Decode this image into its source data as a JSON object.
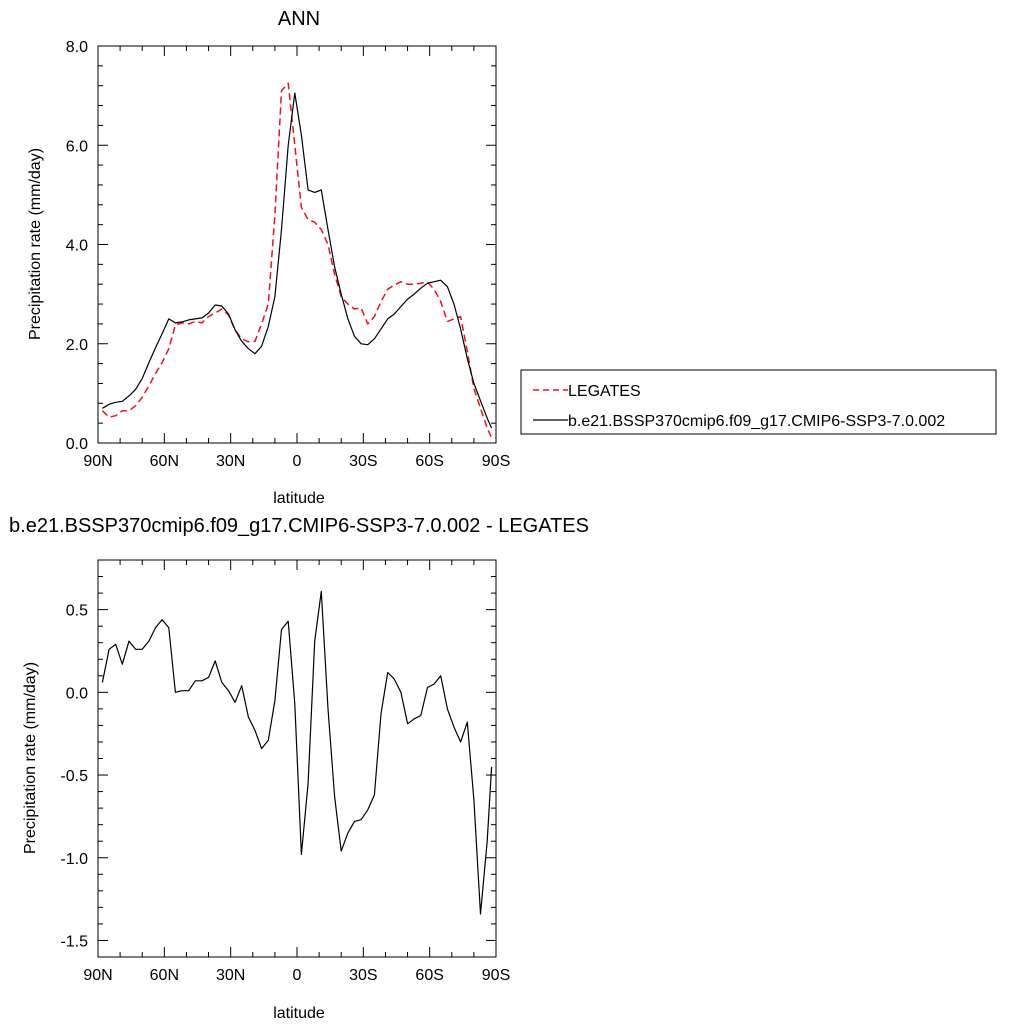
{
  "chart_data": [
    {
      "type": "line",
      "title": "ANN",
      "xlabel": "latitude",
      "ylabel": "Precipitation rate (mm/day)",
      "xlim": [
        90,
        -90
      ],
      "ylim": [
        0,
        8
      ],
      "xticks": [
        {
          "value": 90,
          "label": "90N"
        },
        {
          "value": 60,
          "label": "60N"
        },
        {
          "value": 30,
          "label": "30N"
        },
        {
          "value": 0,
          "label": "0"
        },
        {
          "value": -30,
          "label": "30S"
        },
        {
          "value": -60,
          "label": "60S"
        },
        {
          "value": -90,
          "label": "90S"
        }
      ],
      "yticks": [
        {
          "value": 0,
          "label": "0.0"
        },
        {
          "value": 2,
          "label": "2.0"
        },
        {
          "value": 4,
          "label": "4.0"
        },
        {
          "value": 6,
          "label": "6.0"
        },
        {
          "value": 8,
          "label": "8.0"
        }
      ],
      "legend": "right",
      "series": [
        {
          "name": "LEGATES",
          "color": "#e8141b",
          "dash": "dashed",
          "x": [
            88,
            85,
            82,
            79,
            76,
            73,
            70,
            67,
            64,
            61,
            58,
            55,
            52,
            49,
            46,
            43,
            40,
            37,
            34,
            31,
            28,
            25,
            22,
            19,
            16,
            13,
            10,
            7,
            4,
            1,
            -2,
            -5,
            -8,
            -11,
            -14,
            -17,
            -20,
            -23,
            -26,
            -29,
            -32,
            -35,
            -38,
            -41,
            -44,
            -47,
            -50,
            -53,
            -56,
            -59,
            -62,
            -65,
            -68,
            -71,
            -74,
            -77,
            -80,
            -83,
            -86,
            -88
          ],
          "y": [
            0.65,
            0.52,
            0.55,
            0.65,
            0.65,
            0.75,
            0.92,
            1.15,
            1.4,
            1.62,
            1.9,
            2.38,
            2.42,
            2.4,
            2.45,
            2.42,
            2.55,
            2.62,
            2.7,
            2.58,
            2.28,
            2.1,
            2.04,
            2.05,
            2.4,
            2.8,
            4.6,
            7.1,
            7.25,
            6.0,
            4.75,
            4.5,
            4.45,
            4.3,
            4.0,
            3.4,
            2.95,
            2.8,
            2.7,
            2.72,
            2.4,
            2.55,
            2.85,
            3.1,
            3.18,
            3.25,
            3.2,
            3.2,
            3.22,
            3.24,
            3.1,
            2.85,
            2.45,
            2.5,
            2.55,
            1.85,
            1.1,
            0.7,
            0.3,
            0.1
          ]
        },
        {
          "name": "b.e21.BSSP370cmip6.f09_g17.CMIP6-SSP3-7.0.002",
          "color": "#000000",
          "dash": "solid",
          "x": [
            88,
            85,
            82,
            79,
            76,
            73,
            70,
            67,
            64,
            61,
            58,
            55,
            52,
            49,
            46,
            43,
            40,
            37,
            34,
            31,
            28,
            25,
            22,
            19,
            16,
            13,
            10,
            7,
            4,
            1,
            -2,
            -5,
            -8,
            -11,
            -14,
            -17,
            -20,
            -23,
            -26,
            -29,
            -32,
            -35,
            -38,
            -41,
            -44,
            -47,
            -50,
            -53,
            -56,
            -59,
            -62,
            -65,
            -68,
            -71,
            -74,
            -77,
            -80,
            -83,
            -86,
            -88
          ],
          "y": [
            0.7,
            0.78,
            0.82,
            0.84,
            0.95,
            1.08,
            1.3,
            1.62,
            1.92,
            2.2,
            2.5,
            2.42,
            2.44,
            2.48,
            2.5,
            2.52,
            2.62,
            2.78,
            2.76,
            2.6,
            2.28,
            2.05,
            1.9,
            1.8,
            1.95,
            2.35,
            2.95,
            4.3,
            6.0,
            7.05,
            6.2,
            5.1,
            5.05,
            5.1,
            4.3,
            3.55,
            3.0,
            2.5,
            2.15,
            2.0,
            1.98,
            2.1,
            2.3,
            2.5,
            2.6,
            2.75,
            2.9,
            3.0,
            3.12,
            3.22,
            3.25,
            3.28,
            3.15,
            2.8,
            2.3,
            1.7,
            1.2,
            0.85,
            0.5,
            0.3
          ]
        }
      ]
    },
    {
      "type": "line",
      "title": "b.e21.BSSP370cmip6.f09_g17.CMIP6-SSP3-7.0.002 - LEGATES",
      "xlabel": "latitude",
      "ylabel": "Precipitation rate (mm/day)",
      "xlim": [
        90,
        -90
      ],
      "ylim": [
        -1.6,
        0.8
      ],
      "xticks": [
        {
          "value": 90,
          "label": "90N"
        },
        {
          "value": 60,
          "label": "60N"
        },
        {
          "value": 30,
          "label": "30N"
        },
        {
          "value": 0,
          "label": "0"
        },
        {
          "value": -30,
          "label": "30S"
        },
        {
          "value": -60,
          "label": "60S"
        },
        {
          "value": -90,
          "label": "90S"
        }
      ],
      "yticks": [
        {
          "value": -1.5,
          "label": "-1.5"
        },
        {
          "value": -1.0,
          "label": "-1.0"
        },
        {
          "value": -0.5,
          "label": "-0.5"
        },
        {
          "value": 0.0,
          "label": "0.0"
        },
        {
          "value": 0.5,
          "label": "0.5"
        }
      ],
      "series": [
        {
          "color": "#000000",
          "dash": "solid",
          "x": [
            88,
            85,
            82,
            79,
            76,
            73,
            70,
            67,
            64,
            61,
            58,
            55,
            52,
            49,
            46,
            43,
            40,
            37,
            34,
            31,
            28,
            25,
            22,
            19,
            16,
            13,
            10,
            7,
            4,
            1,
            -2,
            -5,
            -8,
            -11,
            -14,
            -17,
            -20,
            -23,
            -26,
            -29,
            -32,
            -35,
            -38,
            -41,
            -44,
            -47,
            -50,
            -53,
            -56,
            -59,
            -62,
            -65,
            -68,
            -71,
            -74,
            -77,
            -80,
            -83,
            -86,
            -88
          ],
          "y": [
            0.06,
            0.26,
            0.29,
            0.17,
            0.31,
            0.26,
            0.26,
            0.31,
            0.39,
            0.44,
            0.39,
            0.0,
            0.01,
            0.01,
            0.07,
            0.07,
            0.09,
            0.19,
            0.06,
            0.01,
            -0.06,
            0.04,
            -0.15,
            -0.23,
            -0.34,
            -0.29,
            -0.05,
            0.38,
            0.43,
            -0.07,
            -0.98,
            -0.55,
            0.31,
            0.61,
            -0.1,
            -0.63,
            -0.96,
            -0.85,
            -0.78,
            -0.77,
            -0.71,
            -0.62,
            -0.13,
            0.12,
            0.08,
            0.0,
            -0.19,
            -0.16,
            -0.14,
            0.03,
            0.05,
            0.1,
            -0.1,
            -0.21,
            -0.3,
            -0.18,
            -0.65,
            -1.34,
            -0.9,
            -0.45
          ]
        }
      ]
    }
  ]
}
